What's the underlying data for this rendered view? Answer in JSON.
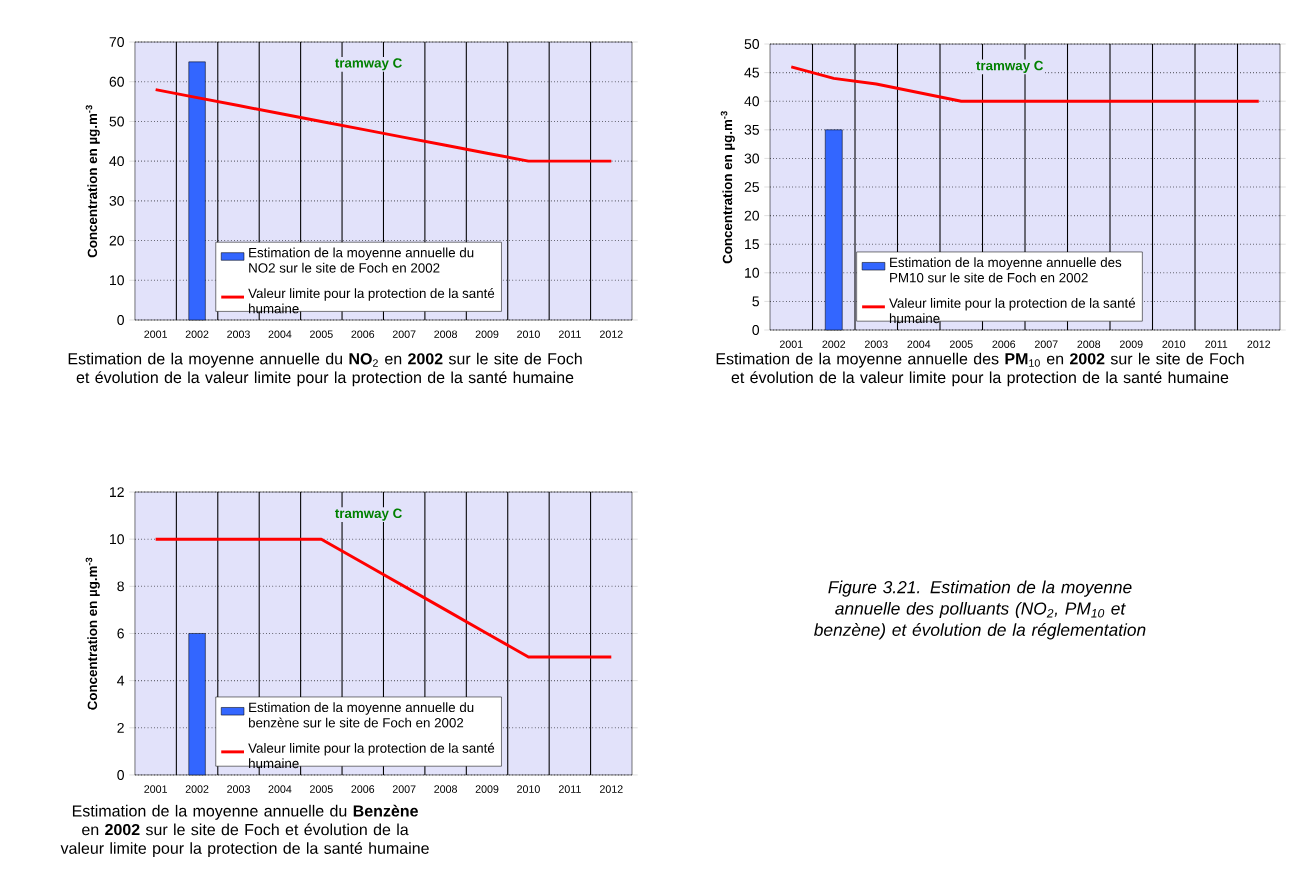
{
  "chart_data": [
    {
      "type": "bar",
      "title": "Estimation de la moyenne annuelle du **NO**$_{2}$ en **2002** sur le site de Foch et évolution de la valeur limite pour la protection de la santé humaine",
      "ylabel": "Concentration en µg.m$^{-3}$",
      "annotations": [
        "tramway C"
      ],
      "categories": [
        "2001",
        "2002",
        "2003",
        "2004",
        "2005",
        "2006",
        "2007",
        "2008",
        "2009",
        "2010",
        "2011",
        "2012"
      ],
      "ylim": [
        0,
        70
      ],
      "yticks": [
        0,
        10,
        20,
        30,
        40,
        50,
        60,
        70
      ],
      "grid": true,
      "legend": "bottom",
      "series": [
        {
          "name": "Estimation de la moyenne annuelle du NO2 sur le site de Foch en 2002",
          "type": "bar",
          "color": "#3366ff",
          "values": [
            null,
            65,
            null,
            null,
            null,
            null,
            null,
            null,
            null,
            null,
            null,
            null
          ]
        },
        {
          "name": "Valeur limite pour la protection de la santé humaine",
          "type": "line",
          "color": "#ff0000",
          "values": [
            58,
            56,
            54,
            52,
            50,
            48,
            46,
            44,
            42,
            40,
            40,
            40
          ]
        }
      ]
    },
    {
      "type": "bar",
      "title": "Estimation de la moyenne annuelle des **PM**$_{10}$ en **2002** sur le site de Foch et évolution de la valeur limite pour la protection de la santé humaine",
      "ylabel": "Concentration en µg.m$^{-3}$",
      "annotations": [
        "tramway C"
      ],
      "categories": [
        "2001",
        "2002",
        "2003",
        "2004",
        "2005",
        "2006",
        "2007",
        "2008",
        "2009",
        "2010",
        "2011",
        "2012"
      ],
      "ylim": [
        0,
        50
      ],
      "yticks": [
        0,
        5,
        10,
        15,
        20,
        25,
        30,
        35,
        40,
        45,
        50
      ],
      "grid": true,
      "legend": "bottom",
      "series": [
        {
          "name": "Estimation de la moyenne annuelle des PM10 sur le site de Foch en 2002",
          "type": "bar",
          "color": "#3366ff",
          "values": [
            null,
            35,
            null,
            null,
            null,
            null,
            null,
            null,
            null,
            null,
            null,
            null
          ]
        },
        {
          "name": "Valeur limite pour la protection de la santé humaine",
          "type": "line",
          "color": "#ff0000",
          "values": [
            46,
            44,
            43,
            41.5,
            40,
            40,
            40,
            40,
            40,
            40,
            40,
            40
          ]
        }
      ]
    },
    {
      "type": "bar",
      "title": "Estimation de la moyenne annuelle du **Benzène** en **2002** sur le site de Foch et évolution de la valeur limite pour la protection de la santé humaine",
      "ylabel": "Concentration en µg.m$^{-3}$",
      "annotations": [
        "tramway C"
      ],
      "categories": [
        "2001",
        "2002",
        "2003",
        "2004",
        "2005",
        "2006",
        "2007",
        "2008",
        "2009",
        "2010",
        "2011",
        "2012"
      ],
      "ylim": [
        0,
        12
      ],
      "yticks": [
        0,
        2,
        4,
        6,
        8,
        10,
        12
      ],
      "grid": true,
      "legend": "bottom",
      "series": [
        {
          "name": "Estimation de la moyenne annuelle du benzène sur le site de Foch en 2002",
          "type": "bar",
          "color": "#3366ff",
          "values": [
            null,
            6,
            null,
            null,
            null,
            null,
            null,
            null,
            null,
            null,
            null,
            null
          ]
        },
        {
          "name": "Valeur limite pour la protection de la santé humaine",
          "type": "line",
          "color": "#ff0000",
          "values": [
            10,
            10,
            10,
            10,
            10,
            9,
            8,
            7,
            6,
            5,
            5,
            5
          ]
        }
      ]
    },
    {
      "type": "other",
      "title": "Figure 3.21. Estimation de la moyenne annuelle des polluants (NO$_{2}$, PM$_{10}$ et benzène) et évolution de la réglementation"
    }
  ]
}
